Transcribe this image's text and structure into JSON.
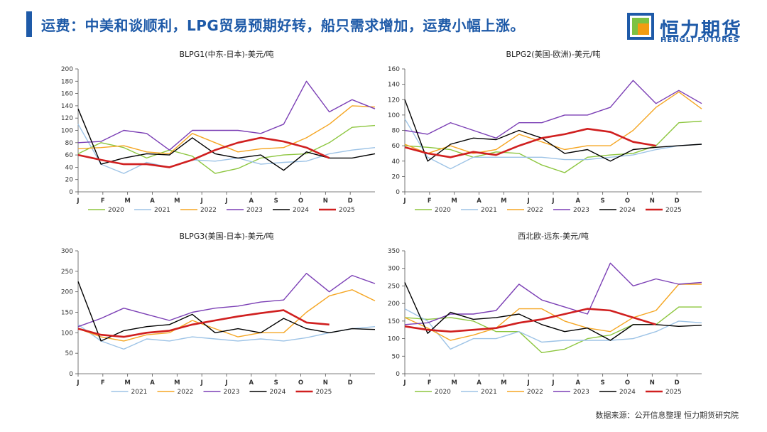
{
  "header": {
    "title": "运费：中美和谈顺利，LPG贸易预期好转，船只需求增加，运费小幅上涨。",
    "logo_cn": "恒力期货",
    "logo_en": "HENGLI FUTURES"
  },
  "footer": {
    "source": "数据来源：公开信息整理  恒力期货研究院"
  },
  "colors": {
    "title": "#1e5aa8",
    "logo_green": "#7dc242",
    "logo_orange": "#f39c12"
  },
  "chart_data": [
    {
      "type": "line",
      "title": "BLPG1(中东-日本)-美元/吨",
      "xlabel": "",
      "ylabel": "",
      "x_ticks": [
        "J",
        "F",
        "M",
        "A",
        "M",
        "J",
        "J",
        "A",
        "S",
        "O",
        "N",
        "D"
      ],
      "ylim": [
        0,
        200
      ],
      "yticks": [
        0,
        20,
        40,
        60,
        80,
        100,
        120,
        140,
        160,
        180,
        200
      ],
      "series": [
        {
          "name": "2020",
          "color": "#8dc63f",
          "values": [
            62,
            80,
            72,
            55,
            68,
            58,
            30,
            38,
            55,
            60,
            62,
            80,
            105,
            108
          ]
        },
        {
          "name": "2021",
          "color": "#9dc3e6",
          "values": [
            110,
            45,
            30,
            48,
            40,
            52,
            50,
            55,
            45,
            48,
            50,
            62,
            68,
            72
          ]
        },
        {
          "name": "2022",
          "color": "#f5a623",
          "values": [
            70,
            72,
            75,
            65,
            62,
            95,
            80,
            65,
            70,
            72,
            88,
            110,
            140,
            138
          ]
        },
        {
          "name": "2023",
          "color": "#7b3fb5",
          "values": [
            80,
            82,
            100,
            95,
            68,
            100,
            100,
            100,
            95,
            110,
            180,
            130,
            150,
            135
          ]
        },
        {
          "name": "2024",
          "color": "#000000",
          "values": [
            135,
            45,
            55,
            62,
            60,
            88,
            62,
            55,
            60,
            35,
            65,
            55,
            55,
            62
          ]
        },
        {
          "name": "2025",
          "color": "#d01f1f",
          "values": [
            60,
            52,
            45,
            45,
            40,
            52,
            68,
            80,
            88,
            82,
            72,
            55
          ]
        }
      ]
    },
    {
      "type": "line",
      "title": "BLPG2(美国-欧洲)-美元/吨",
      "xlabel": "",
      "ylabel": "",
      "x_ticks": [
        "J",
        "F",
        "M",
        "A",
        "M",
        "J",
        "J",
        "A",
        "S",
        "O",
        "N",
        "D"
      ],
      "ylim": [
        0,
        160
      ],
      "yticks": [
        0,
        20,
        40,
        60,
        80,
        100,
        120,
        140,
        160
      ],
      "series": [
        {
          "name": "2020",
          "color": "#8dc63f",
          "values": [
            60,
            58,
            55,
            45,
            52,
            50,
            35,
            25,
            45,
            48,
            50,
            60,
            90,
            92
          ]
        },
        {
          "name": "2021",
          "color": "#9dc3e6",
          "values": [
            95,
            45,
            30,
            45,
            45,
            45,
            45,
            42,
            42,
            45,
            48,
            55,
            60,
            62
          ]
        },
        {
          "name": "2022",
          "color": "#f5a623",
          "values": [
            62,
            50,
            60,
            50,
            55,
            75,
            65,
            55,
            60,
            60,
            80,
            110,
            130,
            108
          ]
        },
        {
          "name": "2023",
          "color": "#7b3fb5",
          "values": [
            80,
            75,
            90,
            80,
            70,
            90,
            90,
            100,
            100,
            110,
            145,
            115,
            132,
            115
          ]
        },
        {
          "name": "2024",
          "color": "#000000",
          "values": [
            120,
            40,
            62,
            70,
            68,
            80,
            70,
            50,
            55,
            40,
            55,
            58,
            60,
            62
          ]
        },
        {
          "name": "2025",
          "color": "#d01f1f",
          "values": [
            58,
            50,
            45,
            52,
            48,
            60,
            70,
            75,
            82,
            78,
            65,
            60
          ]
        }
      ]
    },
    {
      "type": "line",
      "title": "BLPG3(美国-日本)-美元/吨",
      "xlabel": "",
      "ylabel": "",
      "x_ticks": [
        "J",
        "F",
        "M",
        "A",
        "M",
        "J",
        "J",
        "A",
        "S",
        "O",
        "N",
        "D"
      ],
      "ylim": [
        0,
        300
      ],
      "yticks": [
        0,
        50,
        100,
        150,
        200,
        250,
        300
      ],
      "series": [
        {
          "name": "2021",
          "color": "#9dc3e6",
          "values": [
            120,
            80,
            60,
            85,
            80,
            90,
            85,
            80,
            85,
            80,
            88,
            100,
            110,
            115
          ]
        },
        {
          "name": "2022",
          "color": "#f5a623",
          "values": [
            110,
            90,
            80,
            95,
            100,
            130,
            110,
            90,
            100,
            100,
            150,
            190,
            205,
            178
          ]
        },
        {
          "name": "2023",
          "color": "#7b3fb5",
          "values": [
            115,
            135,
            160,
            145,
            130,
            150,
            160,
            165,
            175,
            180,
            245,
            200,
            240,
            220
          ]
        },
        {
          "name": "2024",
          "color": "#000000",
          "values": [
            225,
            80,
            105,
            115,
            120,
            145,
            100,
            110,
            100,
            135,
            110,
            100,
            110,
            108
          ]
        },
        {
          "name": "2025",
          "color": "#d01f1f",
          "values": [
            110,
            95,
            90,
            100,
            105,
            120,
            130,
            140,
            148,
            155,
            125,
            120
          ]
        }
      ]
    },
    {
      "type": "line",
      "title": "西北欧-远东-美元/吨",
      "xlabel": "",
      "ylabel": "",
      "x_ticks": [
        "J",
        "F",
        "M",
        "A",
        "M",
        "J",
        "J",
        "A",
        "S",
        "O",
        "N",
        "D"
      ],
      "ylim": [
        0,
        350
      ],
      "yticks": [
        0,
        50,
        100,
        150,
        200,
        250,
        300,
        350
      ],
      "series": [
        {
          "name": "2020",
          "color": "#8dc63f",
          "values": [
            160,
            155,
            160,
            150,
            120,
            120,
            60,
            70,
            100,
            110,
            140,
            140,
            190,
            190
          ]
        },
        {
          "name": "2021",
          "color": "#9dc3e6",
          "values": [
            185,
            150,
            70,
            100,
            100,
            120,
            90,
            95,
            95,
            95,
            100,
            120,
            150,
            145
          ]
        },
        {
          "name": "2022",
          "color": "#f5a623",
          "values": [
            160,
            130,
            95,
            110,
            130,
            185,
            185,
            150,
            130,
            120,
            160,
            180,
            255,
            255
          ]
        },
        {
          "name": "2023",
          "color": "#7b3fb5",
          "values": [
            140,
            145,
            170,
            170,
            180,
            255,
            210,
            190,
            170,
            315,
            250,
            270,
            255,
            260
          ]
        },
        {
          "name": "2024",
          "color": "#000000",
          "values": [
            260,
            115,
            175,
            155,
            160,
            170,
            140,
            120,
            130,
            95,
            140,
            140,
            135,
            138
          ]
        },
        {
          "name": "2025",
          "color": "#d01f1f",
          "values": [
            135,
            125,
            120,
            125,
            130,
            145,
            155,
            170,
            185,
            180,
            160,
            140
          ]
        }
      ]
    }
  ]
}
